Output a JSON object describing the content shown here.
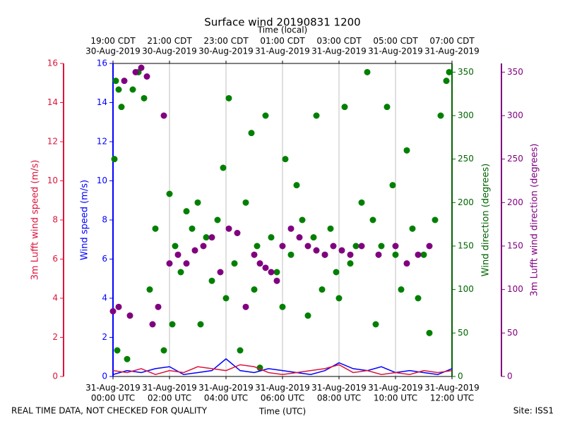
{
  "chart_data": {
    "type": "scatter",
    "title": "Surface wind 20190831 1200",
    "x2label": "Time (local)",
    "xlabel": "Time (UTC)",
    "footer_left": "REAL TIME DATA, NOT CHECKED FOR QUALITY",
    "footer_right": "Site: ISS1",
    "xlim": [
      0,
      12
    ],
    "grid": true,
    "xticks": [
      {
        "value": 0,
        "label": "31-Aug-2019\n00:00 UTC"
      },
      {
        "value": 2,
        "label": "31-Aug-2019\n02:00 UTC"
      },
      {
        "value": 4,
        "label": "31-Aug-2019\n04:00 UTC"
      },
      {
        "value": 6,
        "label": "31-Aug-2019\n06:00 UTC"
      },
      {
        "value": 8,
        "label": "31-Aug-2019\n08:00 UTC"
      },
      {
        "value": 10,
        "label": "31-Aug-2019\n10:00 UTC"
      },
      {
        "value": 12,
        "label": "31-Aug-2019\n12:00 UTC"
      }
    ],
    "x2ticks": [
      {
        "value": 0,
        "label": "19:00 CDT\n30-Aug-2019"
      },
      {
        "value": 2,
        "label": "21:00 CDT\n30-Aug-2019"
      },
      {
        "value": 4,
        "label": "23:00 CDT\n30-Aug-2019"
      },
      {
        "value": 6,
        "label": "01:00 CDT\n31-Aug-2019"
      },
      {
        "value": 8,
        "label": "03:00 CDT\n31-Aug-2019"
      },
      {
        "value": 10,
        "label": "05:00 CDT\n31-Aug-2019"
      },
      {
        "value": 12,
        "label": "07:00 CDT\n31-Aug-2019"
      }
    ],
    "axes": [
      {
        "label": "Wind speed (m/s)",
        "color": "#0000ff",
        "side": "left-inner",
        "lim": [
          0,
          16
        ],
        "ticks": [
          0,
          2,
          4,
          6,
          8,
          10,
          12,
          14,
          16
        ]
      },
      {
        "label": "3m Lufft wind speed (m/s)",
        "color": "#dc143c",
        "side": "left-outer",
        "lim": [
          0,
          16
        ],
        "ticks": [
          0,
          2,
          4,
          6,
          8,
          10,
          12,
          14,
          16
        ]
      },
      {
        "label": "Wind direction (degrees)",
        "color": "#006400",
        "side": "right-inner",
        "lim": [
          0,
          360
        ],
        "ticks": [
          0,
          50,
          100,
          150,
          200,
          250,
          300,
          350
        ]
      },
      {
        "label": "3m Lufft wind direction (degrees)",
        "color": "#800080",
        "side": "right-outer",
        "lim": [
          0,
          360
        ],
        "ticks": [
          0,
          50,
          100,
          150,
          200,
          250,
          300,
          350
        ]
      }
    ],
    "series": [
      {
        "type": "scatter",
        "axis": 2,
        "color": "#008000",
        "x": [
          0.05,
          0.1,
          0.15,
          0.2,
          0.3,
          0.5,
          0.7,
          0.9,
          1.1,
          1.3,
          1.5,
          1.8,
          2.0,
          2.1,
          2.2,
          2.4,
          2.6,
          2.8,
          3.0,
          3.1,
          3.3,
          3.5,
          3.7,
          3.9,
          4.0,
          4.1,
          4.3,
          4.5,
          4.7,
          4.9,
          5.0,
          5.1,
          5.2,
          5.4,
          5.6,
          5.8,
          6.0,
          6.1,
          6.3,
          6.5,
          6.7,
          6.9,
          7.1,
          7.2,
          7.4,
          7.5,
          7.7,
          7.9,
          8.0,
          8.2,
          8.4,
          8.6,
          8.8,
          9.0,
          9.2,
          9.3,
          9.5,
          9.7,
          9.9,
          10.0,
          10.2,
          10.4,
          10.6,
          10.8,
          11.0,
          11.2,
          11.4,
          11.6,
          11.8,
          11.9
        ],
        "values": [
          250,
          340,
          30,
          330,
          310,
          20,
          330,
          350,
          320,
          100,
          170,
          30,
          210,
          60,
          150,
          120,
          190,
          170,
          200,
          60,
          160,
          110,
          180,
          240,
          90,
          320,
          130,
          30,
          200,
          280,
          100,
          150,
          10,
          300,
          160,
          120,
          80,
          250,
          140,
          220,
          180,
          70,
          160,
          300,
          100,
          140,
          170,
          120,
          90,
          310,
          130,
          150,
          200,
          350,
          180,
          60,
          150,
          310,
          220,
          140,
          100,
          260,
          170,
          90,
          140,
          50,
          180,
          300,
          340,
          350
        ]
      },
      {
        "type": "scatter",
        "axis": 3,
        "color": "#800080",
        "x": [
          0.0,
          0.2,
          0.4,
          0.6,
          0.8,
          1.0,
          1.2,
          1.4,
          1.6,
          1.8,
          2.0,
          2.3,
          2.6,
          2.9,
          3.2,
          3.5,
          3.8,
          4.1,
          4.4,
          4.7,
          5.0,
          5.2,
          5.4,
          5.6,
          5.8,
          6.0,
          6.3,
          6.6,
          6.9,
          7.2,
          7.5,
          7.8,
          8.1,
          8.4,
          8.8,
          9.4,
          10.0,
          10.4,
          10.8,
          11.2
        ],
        "values": [
          75,
          80,
          340,
          70,
          350,
          355,
          345,
          60,
          80,
          300,
          130,
          140,
          130,
          145,
          150,
          160,
          120,
          170,
          165,
          80,
          140,
          130,
          125,
          120,
          110,
          150,
          170,
          160,
          150,
          145,
          140,
          150,
          145,
          140,
          150,
          140,
          150,
          130,
          140,
          150
        ]
      },
      {
        "type": "line",
        "axis": 0,
        "color": "#0000ff",
        "x": [
          0,
          0.5,
          1,
          1.5,
          2,
          2.5,
          3,
          3.5,
          4,
          4.5,
          5,
          5.5,
          6,
          6.5,
          7,
          7.5,
          8,
          8.5,
          9,
          9.5,
          10,
          10.5,
          11,
          11.5,
          12
        ],
        "values": [
          0.1,
          0.3,
          0.2,
          0.4,
          0.5,
          0.1,
          0.2,
          0.3,
          0.9,
          0.3,
          0.2,
          0.4,
          0.3,
          0.2,
          0.1,
          0.3,
          0.7,
          0.4,
          0.3,
          0.5,
          0.2,
          0.3,
          0.2,
          0.1,
          0.4
        ]
      },
      {
        "type": "line",
        "axis": 1,
        "color": "#dc143c",
        "x": [
          0,
          0.5,
          1,
          1.5,
          2,
          2.5,
          3,
          3.5,
          4,
          4.5,
          5,
          5.5,
          6,
          6.5,
          7,
          7.5,
          8,
          8.5,
          9,
          9.5,
          10,
          10.5,
          11,
          11.5,
          12
        ],
        "values": [
          0.3,
          0.2,
          0.4,
          0.1,
          0.3,
          0.2,
          0.5,
          0.4,
          0.3,
          0.6,
          0.5,
          0.2,
          0.1,
          0.2,
          0.3,
          0.4,
          0.6,
          0.2,
          0.3,
          0.1,
          0.2,
          0.1,
          0.3,
          0.2,
          0.3
        ]
      }
    ]
  }
}
